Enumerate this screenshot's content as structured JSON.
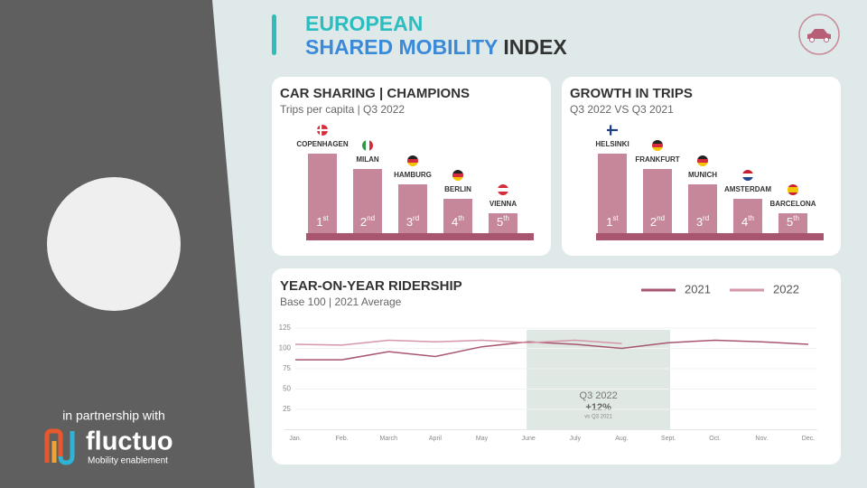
{
  "header": {
    "title_line1": "EUROPEAN",
    "title_line2_highlight": "SHARED MOBILITY",
    "title_line2_rest": "INDEX"
  },
  "partner": {
    "caption": "in partnership with",
    "logo": "fluctuo",
    "tagline": "Mobility enablement"
  },
  "rankings": [
    {
      "title": "CAR SHARING | CHAMPIONS",
      "subtitle": "Trips per capita | Q3 2022",
      "items": [
        {
          "city": "COPENHAGEN",
          "rank": "1",
          "suffix": "st"
        },
        {
          "city": "MILAN",
          "rank": "2",
          "suffix": "nd"
        },
        {
          "city": "HAMBURG",
          "rank": "3",
          "suffix": "rd"
        },
        {
          "city": "BERLIN",
          "rank": "4",
          "suffix": "th"
        },
        {
          "city": "VIENNA",
          "rank": "5",
          "suffix": "th"
        }
      ]
    },
    {
      "title": "GROWTH IN TRIPS",
      "subtitle": "Q3 2022 VS Q3 2021",
      "items": [
        {
          "city": "HELSINKI",
          "rank": "1",
          "suffix": "st"
        },
        {
          "city": "FRANKFURT",
          "rank": "2",
          "suffix": "nd"
        },
        {
          "city": "MUNICH",
          "rank": "3",
          "suffix": "rd"
        },
        {
          "city": "AMSTERDAM",
          "rank": "4",
          "suffix": "th"
        },
        {
          "city": "BARCELONA",
          "rank": "5",
          "suffix": "th"
        }
      ]
    }
  ],
  "chart_data": {
    "type": "line",
    "title": "YEAR-ON-YEAR RIDERSHIP",
    "subtitle": "Base 100 | 2021 Average",
    "categories": [
      "Jan.",
      "Feb.",
      "March",
      "April",
      "May",
      "June",
      "July",
      "Aug.",
      "Sept.",
      "Oct.",
      "Nov.",
      "Dec."
    ],
    "series": [
      {
        "name": "2021",
        "color": "#a8566f",
        "values": [
          86,
          86,
          96,
          90,
          102,
          108,
          105,
          100,
          107,
          110,
          108,
          105
        ]
      },
      {
        "name": "2022",
        "color": "#d697a8",
        "values": [
          105,
          104,
          110,
          108,
          110,
          107,
          110,
          106,
          null,
          null,
          null,
          null
        ]
      }
    ],
    "ylim": [
      0,
      125
    ],
    "yticks": [
      25,
      50,
      75,
      100,
      125
    ],
    "annotation": {
      "title": "Q3 2022",
      "value": "+12%",
      "note": "vs Q3 2021"
    }
  }
}
